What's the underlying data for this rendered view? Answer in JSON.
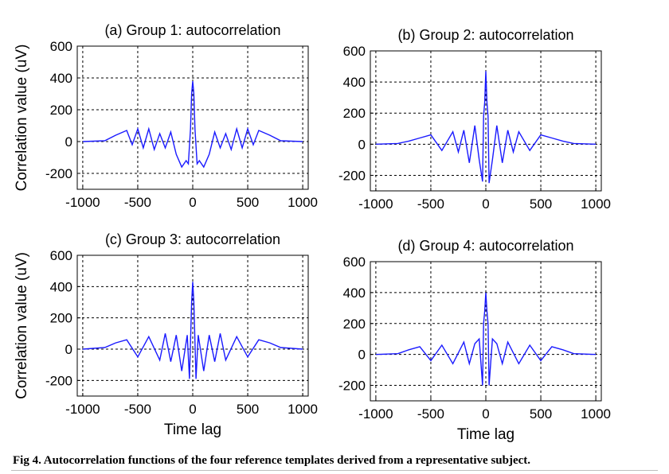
{
  "figure": {
    "caption_label": "Fig 4.",
    "caption_text": "Autocorrelation functions of the four reference templates derived from a representative subject."
  },
  "colors": {
    "line": "#1a1aff",
    "axis": "#000000",
    "grid": "#000000"
  },
  "chart_data": [
    {
      "type": "line",
      "title": "(a) Group 1: autocorrelation",
      "xlabel": "",
      "ylabel": "Correlation value (uV)",
      "xlim": [
        -1050,
        1050
      ],
      "ylim": [
        -300,
        600
      ],
      "xticks": [
        -1000,
        -500,
        0,
        500,
        1000
      ],
      "xtick_labels": [
        "-1000",
        "-500",
        "0",
        "500",
        "1000"
      ],
      "yticks": [
        -200,
        0,
        200,
        400,
        600
      ],
      "ytick_labels": [
        "-200",
        "0",
        "200",
        "400",
        "600"
      ],
      "grid": true,
      "series": [
        {
          "x": [
            -1000,
            -800,
            -700,
            -600,
            -550,
            -500,
            -450,
            -400,
            -350,
            -300,
            -250,
            -200,
            -150,
            -100,
            -60,
            -40,
            -20,
            -10,
            0,
            10,
            20,
            40,
            60,
            100,
            150,
            200,
            250,
            300,
            350,
            400,
            450,
            500,
            550,
            600,
            700,
            800,
            1000
          ],
          "y": [
            0,
            5,
            40,
            70,
            -20,
            80,
            -40,
            80,
            -50,
            50,
            -40,
            60,
            -80,
            -160,
            -120,
            -140,
            80,
            300,
            380,
            300,
            80,
            -140,
            -120,
            -160,
            -80,
            60,
            -40,
            50,
            -50,
            80,
            -40,
            80,
            -20,
            70,
            40,
            5,
            0
          ]
        }
      ]
    },
    {
      "type": "line",
      "title": "(b) Group 2: autocorrelation",
      "xlabel": "",
      "ylabel": "",
      "xlim": [
        -1050,
        1050
      ],
      "ylim": [
        -300,
        600
      ],
      "xticks": [
        -1000,
        -500,
        0,
        500,
        1000
      ],
      "xtick_labels": [
        "-1000",
        "-500",
        "0",
        "500",
        "1000"
      ],
      "yticks": [
        -200,
        0,
        200,
        400,
        600
      ],
      "ytick_labels": [
        "-200",
        "0",
        "200",
        "400",
        "600"
      ],
      "grid": true,
      "series": [
        {
          "x": [
            -1000,
            -800,
            -700,
            -600,
            -500,
            -400,
            -300,
            -250,
            -200,
            -150,
            -100,
            -60,
            -30,
            -20,
            -10,
            0,
            10,
            20,
            30,
            60,
            100,
            150,
            200,
            250,
            300,
            400,
            500,
            600,
            700,
            800,
            1000
          ],
          "y": [
            0,
            5,
            20,
            40,
            60,
            -40,
            80,
            -50,
            90,
            -120,
            120,
            -100,
            -240,
            180,
            270,
            470,
            270,
            180,
            -250,
            -100,
            120,
            -120,
            90,
            -50,
            80,
            -40,
            60,
            40,
            20,
            5,
            0
          ]
        }
      ]
    },
    {
      "type": "line",
      "title": "(c) Group 3: autocorrelation",
      "xlabel": "Time lag",
      "ylabel": "Correlation value (uV)",
      "xlim": [
        -1050,
        1050
      ],
      "ylim": [
        -300,
        600
      ],
      "xticks": [
        -1000,
        -500,
        0,
        500,
        1000
      ],
      "xtick_labels": [
        "-1000",
        "-500",
        "0",
        "500",
        "1000"
      ],
      "yticks": [
        -200,
        0,
        200,
        400,
        600
      ],
      "ytick_labels": [
        "-200",
        "0",
        "200",
        "400",
        "600"
      ],
      "grid": true,
      "series": [
        {
          "x": [
            -1000,
            -800,
            -700,
            -600,
            -500,
            -400,
            -300,
            -250,
            -200,
            -150,
            -100,
            -50,
            -30,
            -10,
            0,
            10,
            30,
            50,
            100,
            150,
            200,
            250,
            300,
            400,
            500,
            600,
            700,
            800,
            1000
          ],
          "y": [
            0,
            10,
            40,
            60,
            -50,
            80,
            -70,
            100,
            -80,
            90,
            -140,
            90,
            -190,
            300,
            430,
            300,
            -190,
            90,
            -140,
            90,
            -80,
            100,
            -70,
            80,
            -50,
            60,
            40,
            10,
            0
          ]
        }
      ]
    },
    {
      "type": "line",
      "title": "(d) Group 4: autocorrelation",
      "xlabel": "Time lag",
      "ylabel": "",
      "xlim": [
        -1050,
        1050
      ],
      "ylim": [
        -300,
        600
      ],
      "xticks": [
        -1000,
        -500,
        0,
        500,
        1000
      ],
      "xtick_labels": [
        "-1000",
        "-500",
        "0",
        "500",
        "1000"
      ],
      "yticks": [
        -200,
        0,
        200,
        400,
        600
      ],
      "ytick_labels": [
        "-200",
        "0",
        "200",
        "400",
        "600"
      ],
      "grid": true,
      "series": [
        {
          "x": [
            -1000,
            -800,
            -700,
            -600,
            -500,
            -400,
            -300,
            -200,
            -150,
            -100,
            -60,
            -30,
            -20,
            -10,
            0,
            10,
            20,
            30,
            60,
            100,
            150,
            200,
            300,
            400,
            500,
            600,
            700,
            800,
            1000
          ],
          "y": [
            0,
            5,
            30,
            50,
            -40,
            60,
            -60,
            80,
            -60,
            70,
            100,
            -200,
            200,
            280,
            400,
            280,
            200,
            -200,
            100,
            70,
            -60,
            80,
            -60,
            60,
            -40,
            50,
            30,
            5,
            0
          ]
        }
      ]
    }
  ]
}
